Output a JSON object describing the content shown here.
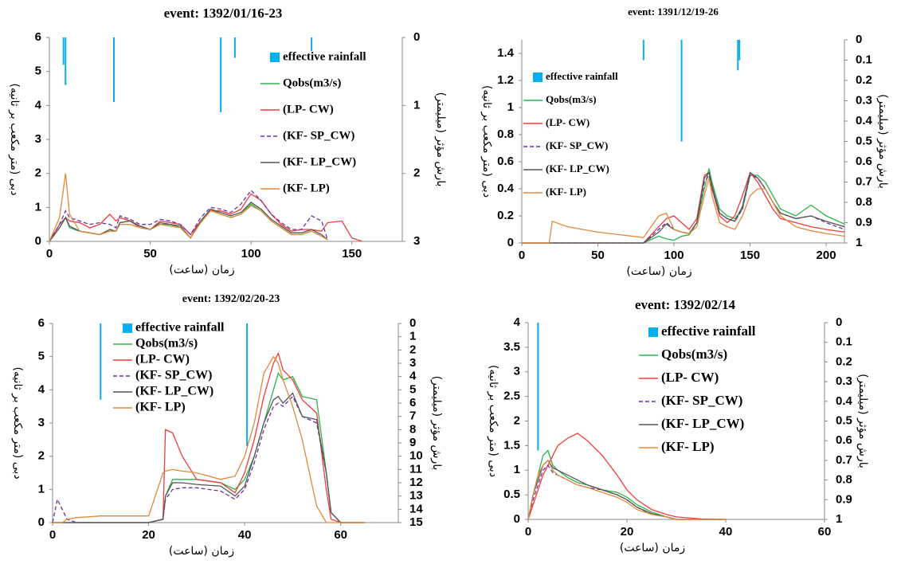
{
  "chart_data": [
    {
      "type": "line",
      "title": "event: 1392/01/16-23",
      "xlabel": "زمان (ساعت)",
      "ylabel": "دبی (متر مکعب بر ثانیه)",
      "y2label": "بارش مؤثر (میلیمتر)",
      "xlim": [
        0,
        175
      ],
      "xticks": [
        0,
        50,
        100,
        150
      ],
      "ylim": [
        0,
        6
      ],
      "yticks": [
        0,
        1,
        2,
        3,
        4,
        5,
        6
      ],
      "y2lim": [
        0,
        3
      ],
      "y2ticks": [
        0,
        1,
        2,
        3
      ],
      "y2_inverted": true,
      "x": [
        0,
        5,
        8,
        10,
        15,
        20,
        25,
        30,
        33,
        35,
        40,
        45,
        50,
        55,
        60,
        65,
        70,
        75,
        80,
        85,
        90,
        95,
        100,
        105,
        110,
        115,
        120,
        125,
        130,
        135,
        138,
        145,
        150,
        155
      ],
      "series": [
        {
          "name": "effective rainfall",
          "color": "#00b0f0",
          "type": "bar",
          "axis": "y2",
          "x": [
            7,
            8,
            32,
            85,
            92,
            130
          ],
          "values": [
            0.4,
            0.7,
            0.95,
            1.1,
            0.3,
            0.2
          ]
        },
        {
          "name": "Qobs(m3/s)",
          "color": "#2db34a",
          "values": [
            0,
            0.4,
            0.7,
            0.4,
            0.3,
            0.25,
            0.2,
            0.35,
            0.3,
            0.55,
            0.6,
            0.45,
            0.35,
            0.5,
            0.5,
            0.4,
            0.1,
            0.6,
            0.95,
            0.8,
            0.7,
            0.8,
            1.1,
            0.9,
            0.6,
            0.4,
            0.2,
            0.2,
            0.3,
            0.15,
            0.05,
            null,
            null,
            null
          ]
        },
        {
          "name": "(LP- CW)",
          "color": "#f03c3c",
          "values": [
            0,
            0.5,
            0.7,
            0.6,
            0.55,
            0.4,
            0.5,
            0.8,
            0.6,
            0.7,
            0.6,
            0.4,
            0.35,
            0.6,
            0.55,
            0.5,
            0.2,
            0.6,
            0.9,
            0.9,
            0.8,
            0.95,
            1.4,
            1.2,
            0.8,
            0.5,
            0.3,
            0.35,
            0.35,
            0.3,
            0.55,
            0.6,
            0.1,
            0
          ]
        },
        {
          "name": "(KF- SP_CW)",
          "color": "#7030a0",
          "line_style": "dashed",
          "values": [
            0,
            0.5,
            0.9,
            0.7,
            0.6,
            0.5,
            0.55,
            0.5,
            0.4,
            0.75,
            0.65,
            0.5,
            0.5,
            0.65,
            0.6,
            0.5,
            0.2,
            0.7,
            1.0,
            0.95,
            0.85,
            1.1,
            1.5,
            1.2,
            0.8,
            0.55,
            0.35,
            0.35,
            0.75,
            0.6,
            0.05,
            null,
            null,
            null
          ]
        },
        {
          "name": "(KF- LP_CW)",
          "color": "#555555",
          "values": [
            0,
            0.4,
            0.7,
            0.45,
            0.3,
            0.25,
            0.2,
            0.35,
            0.3,
            0.55,
            0.6,
            0.45,
            0.35,
            0.55,
            0.5,
            0.45,
            0.1,
            0.6,
            0.95,
            0.85,
            0.75,
            0.85,
            1.15,
            0.95,
            0.65,
            0.45,
            0.25,
            0.25,
            0.35,
            0.2,
            0.05,
            null,
            null,
            null
          ]
        },
        {
          "name": "(KF- LP)",
          "color": "#e08a3c",
          "values": [
            0,
            0.7,
            2.0,
            0.8,
            0.3,
            0.25,
            0.2,
            0.3,
            0.3,
            0.5,
            0.5,
            0.4,
            0.35,
            0.5,
            0.45,
            0.4,
            0.1,
            0.55,
            0.9,
            0.8,
            0.7,
            0.8,
            1.05,
            0.9,
            0.6,
            0.4,
            0.2,
            0.2,
            0.3,
            0.15,
            0.05,
            null,
            null,
            null
          ]
        }
      ]
    },
    {
      "type": "line",
      "title": "event: 1391/12/19-26",
      "xlabel": "زمان (ساعت)",
      "ylabel": "دبی (متر مکعب بر ثانیه)",
      "y2label": "بارش مؤثر (میلیمتر)",
      "xlim": [
        0,
        212
      ],
      "xticks": [
        0,
        50,
        100,
        150,
        200
      ],
      "ylim": [
        0,
        1.5
      ],
      "yticks": [
        0,
        0.2,
        0.4,
        0.6,
        0.8,
        1,
        1.2,
        1.4
      ],
      "y2lim": [
        0,
        1
      ],
      "y2ticks": [
        0,
        0.1,
        0.2,
        0.3,
        0.4,
        0.5,
        0.6,
        0.7,
        0.8,
        0.9,
        1
      ],
      "y2_inverted": true,
      "x": [
        0,
        10,
        18,
        20,
        30,
        50,
        80,
        90,
        95,
        100,
        105,
        110,
        115,
        120,
        123,
        125,
        130,
        135,
        140,
        145,
        150,
        155,
        160,
        165,
        170,
        180,
        190,
        200,
        212
      ],
      "series": [
        {
          "name": "effective rainfall",
          "color": "#00b0f0",
          "type": "bar",
          "axis": "y2",
          "x": [
            80,
            105,
            142,
            143
          ],
          "values": [
            0.1,
            0.5,
            0.15,
            0.1
          ]
        },
        {
          "name": "Qobs(m3/s)",
          "color": "#2db34a",
          "values": [
            0,
            0,
            0,
            0,
            0,
            0,
            0,
            0.05,
            0.03,
            0.02,
            0.05,
            0.06,
            0.15,
            0.4,
            0.55,
            0.45,
            0.25,
            0.2,
            0.18,
            0.25,
            0.5,
            0.5,
            0.45,
            0.35,
            0.25,
            0.2,
            0.28,
            0.2,
            0.14
          ]
        },
        {
          "name": "(LP- CW)",
          "color": "#f03c3c",
          "values": [
            0,
            0,
            0,
            0,
            0,
            0,
            0,
            0.12,
            0.18,
            0.2,
            0.15,
            0.1,
            0.18,
            0.5,
            0.52,
            0.4,
            0.2,
            0.15,
            0.2,
            0.35,
            0.52,
            0.45,
            0.35,
            0.25,
            0.18,
            0.15,
            0.12,
            0.1,
            0.08
          ]
        },
        {
          "name": "(KF- SP_CW)",
          "color": "#7030a0",
          "line_style": "dashed",
          "values": [
            0,
            0,
            0,
            0,
            0,
            0,
            0,
            0.1,
            0.15,
            0.1,
            0.08,
            0.07,
            0.15,
            0.45,
            0.5,
            0.4,
            0.22,
            0.18,
            0.16,
            0.25,
            0.5,
            0.48,
            0.4,
            0.3,
            0.22,
            0.18,
            0.2,
            0.15,
            0.1
          ]
        },
        {
          "name": "(KF- LP_CW)",
          "color": "#555555",
          "values": [
            0,
            0,
            0,
            0,
            0,
            0,
            0,
            0.08,
            0.14,
            0.1,
            0.08,
            0.07,
            0.15,
            0.48,
            0.52,
            0.42,
            0.22,
            0.18,
            0.16,
            0.27,
            0.52,
            0.48,
            0.4,
            0.3,
            0.22,
            0.18,
            0.2,
            0.16,
            0.12
          ]
        },
        {
          "name": "(KF- LP)",
          "color": "#e08a3c",
          "values": [
            0,
            0,
            0,
            0.16,
            0.12,
            0.08,
            0.04,
            0.2,
            0.22,
            0.1,
            0.08,
            0.07,
            0.12,
            0.35,
            0.48,
            0.35,
            0.15,
            0.12,
            0.1,
            0.2,
            0.35,
            0.4,
            0.4,
            0.3,
            0.2,
            0.12,
            0.09,
            0.07,
            0.05
          ]
        }
      ]
    },
    {
      "type": "line",
      "title": "event: 1392/02/20-23",
      "xlabel": "زمان (ساعت)",
      "ylabel": "دبی (متر مکعب بر ثانیه)",
      "y2label": "بارش مؤثر (میلیمتر)",
      "xlim": [
        0,
        72
      ],
      "xticks": [
        0,
        20,
        40,
        60
      ],
      "ylim": [
        0,
        6
      ],
      "yticks": [
        0,
        1,
        2,
        3,
        4,
        5,
        6
      ],
      "y2lim": [
        0,
        15
      ],
      "y2ticks": [
        0,
        1,
        2,
        3,
        4,
        5,
        6,
        7,
        8,
        9,
        10,
        11,
        12,
        13,
        14,
        15
      ],
      "y2_inverted": true,
      "x": [
        0,
        1,
        2,
        3,
        5,
        10,
        15,
        20,
        23,
        23.5,
        25,
        27,
        30,
        35,
        38,
        40,
        42,
        44,
        46,
        47,
        48,
        50,
        52,
        55,
        57,
        58,
        60,
        63,
        65
      ],
      "series": [
        {
          "name": "effective rainfall",
          "color": "#00b0f0",
          "type": "bar",
          "axis": "y2",
          "x": [
            10,
            40.5
          ],
          "values": [
            5.75,
            9.25
          ]
        },
        {
          "name": "Qobs(m3/s)",
          "color": "#2db34a",
          "values": [
            0,
            0,
            0,
            0,
            0,
            0,
            0,
            0,
            0.1,
            0.8,
            1.3,
            1.3,
            1.3,
            1.2,
            1.0,
            1.3,
            2.0,
            3.0,
            4.0,
            4.5,
            4.3,
            4.4,
            3.8,
            3.7,
            1.5,
            0.3,
            0,
            0,
            0
          ]
        },
        {
          "name": "(LP- CW)",
          "color": "#f03c3c",
          "values": [
            0,
            0,
            0,
            0,
            0,
            0,
            0,
            0,
            0.1,
            2.8,
            2.7,
            2.0,
            1.3,
            1.2,
            0.9,
            1.5,
            2.5,
            3.8,
            4.8,
            5.1,
            4.6,
            4.3,
            3.7,
            3.3,
            1.0,
            0.1,
            0,
            0,
            0
          ]
        },
        {
          "name": "(KF- SP_CW)",
          "color": "#7030a0",
          "line_style": "dashed",
          "values": [
            0,
            0.7,
            0.4,
            0.1,
            0,
            0,
            0,
            0,
            0.1,
            0.7,
            1.0,
            1.05,
            1.05,
            0.95,
            0.7,
            1.0,
            1.8,
            2.8,
            3.5,
            3.6,
            3.5,
            3.8,
            3.2,
            3.0,
            1.5,
            0.3,
            0,
            0,
            0
          ]
        },
        {
          "name": "(KF- LP_CW)",
          "color": "#555555",
          "values": [
            0,
            0,
            0,
            0,
            0,
            0,
            0,
            0,
            0.1,
            0.8,
            1.2,
            1.2,
            1.15,
            1.1,
            0.8,
            1.1,
            2.0,
            3.0,
            3.7,
            3.8,
            3.6,
            3.9,
            3.2,
            3.1,
            1.5,
            0.3,
            0,
            0,
            0
          ]
        },
        {
          "name": "(KF- LP)",
          "color": "#e08a3c",
          "values": [
            0,
            0,
            0,
            0.1,
            0.15,
            0.2,
            0.2,
            0.2,
            1.5,
            1.55,
            1.6,
            1.55,
            1.5,
            1.3,
            1.4,
            2.0,
            3.0,
            4.5,
            5.0,
            4.8,
            4.3,
            3.5,
            2.5,
            0.5,
            0,
            0,
            0,
            0,
            0
          ]
        }
      ]
    },
    {
      "type": "line",
      "title": "event: 1392/02/14",
      "xlabel": "زمان (ساعت)",
      "ylabel": "دبی (متر مکعب بر ثانیه)",
      "y2label": "بارش مؤثر (میلیمتر)",
      "xlim": [
        0,
        60
      ],
      "xticks": [
        0,
        20,
        40,
        60
      ],
      "ylim": [
        0,
        4
      ],
      "yticks": [
        0,
        0.5,
        1,
        1.5,
        2,
        2.5,
        3,
        3.5,
        4
      ],
      "y2lim": [
        0,
        1
      ],
      "y2ticks": [
        0,
        0.1,
        0.2,
        0.3,
        0.4,
        0.5,
        0.6,
        0.7,
        0.8,
        0.9,
        1
      ],
      "y2_inverted": true,
      "x": [
        0,
        1,
        2,
        3,
        4,
        5,
        6,
        8,
        10,
        12,
        15,
        18,
        20,
        22,
        25,
        28,
        30,
        35,
        40
      ],
      "series": [
        {
          "name": "effective rainfall",
          "color": "#00b0f0",
          "type": "bar",
          "axis": "y2",
          "x": [
            2
          ],
          "values": [
            0.65
          ]
        },
        {
          "name": "Qobs(m3/s)",
          "color": "#2db34a",
          "values": [
            0,
            0.5,
            0.9,
            1.3,
            1.4,
            1.1,
            1.0,
            0.85,
            0.75,
            0.7,
            0.6,
            0.55,
            0.45,
            0.3,
            0.15,
            0.05,
            0,
            0,
            0
          ]
        },
        {
          "name": "(LP- CW)",
          "color": "#f03c3c",
          "values": [
            0,
            0.3,
            0.6,
            0.9,
            1.1,
            1.3,
            1.5,
            1.65,
            1.75,
            1.6,
            1.3,
            0.9,
            0.6,
            0.4,
            0.2,
            0.1,
            0.05,
            0.01,
            0
          ]
        },
        {
          "name": "(KF- SP_CW)",
          "color": "#7030a0",
          "line_style": "dashed",
          "values": [
            0,
            0.4,
            0.7,
            1.0,
            1.1,
            0.95,
            0.9,
            0.8,
            0.7,
            0.65,
            0.6,
            0.5,
            0.4,
            0.25,
            0.1,
            0.05,
            0,
            0,
            0
          ]
        },
        {
          "name": "(KF- LP_CW)",
          "color": "#555555",
          "values": [
            0,
            0.5,
            0.8,
            1.1,
            1.2,
            1.05,
            1.0,
            0.9,
            0.8,
            0.7,
            0.6,
            0.5,
            0.4,
            0.25,
            0.12,
            0.05,
            0,
            0,
            0
          ]
        },
        {
          "name": "(KF- LP)",
          "color": "#e08a3c",
          "values": [
            0,
            0.5,
            0.9,
            1.1,
            1.2,
            1.0,
            0.9,
            0.8,
            0.7,
            0.65,
            0.55,
            0.45,
            0.35,
            0.2,
            0.1,
            0.05,
            0,
            0,
            0
          ]
        }
      ]
    }
  ]
}
